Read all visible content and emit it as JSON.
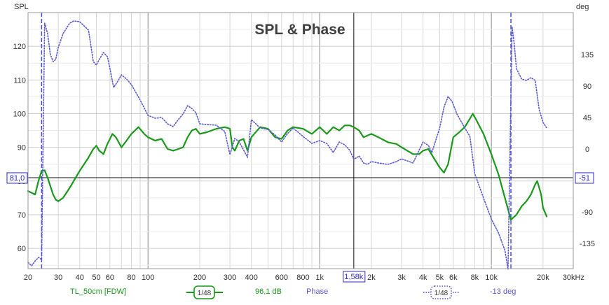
{
  "chart_data": {
    "type": "line",
    "title": "SPL & Phase",
    "xscale": "log",
    "xlim": [
      20,
      30000
    ],
    "ylabel_left": "SPL",
    "ylabel_right": "deg",
    "ylim_left": [
      54,
      130
    ],
    "ylim_right": [
      -171,
      195
    ],
    "x_ticks": [
      20,
      30,
      40,
      50,
      60,
      80,
      100,
      200,
      300,
      400,
      600,
      800,
      1000,
      2000,
      3000,
      4000,
      5000,
      6000,
      8000,
      10000,
      20000,
      30000
    ],
    "x_tick_labels": [
      "20",
      "30",
      "40",
      "50",
      "60",
      "80",
      "100",
      "200",
      "300",
      "400",
      "600",
      "800",
      "1k",
      "2k",
      "3k",
      "4k",
      "5k",
      "6k",
      "8k",
      "10k",
      "20k",
      "30kHz"
    ],
    "y_left_ticks": [
      60,
      70,
      80,
      90,
      100,
      110,
      120
    ],
    "y_left_tick_labels": [
      "60",
      "70",
      "80",
      "90",
      "100",
      "110",
      "120"
    ],
    "y_right_ticks": [
      -135,
      -90,
      -45,
      0,
      45,
      90,
      135
    ],
    "y_right_tick_labels": [
      "-135",
      "-90",
      "-45",
      "0",
      "45",
      "90",
      "135"
    ],
    "cursor": {
      "x": 1580,
      "x_label": "1,58k",
      "spl": 81.0,
      "spl_label": "81,0",
      "phase": -51,
      "phase_label": "-51"
    },
    "markers": [
      24,
      13000
    ],
    "series": [
      {
        "name": "TL_50cm [FDW]",
        "axis": "left",
        "color": "#1a9a1a",
        "style": "solid",
        "smoothing": "1/48",
        "value_label": "96,1 dB",
        "points": [
          [
            20,
            77
          ],
          [
            21,
            76.5
          ],
          [
            22,
            76
          ],
          [
            23,
            80
          ],
          [
            24,
            83
          ],
          [
            25,
            83.2
          ],
          [
            26,
            81
          ],
          [
            28,
            76
          ],
          [
            29,
            74.5
          ],
          [
            30,
            74
          ],
          [
            32,
            75
          ],
          [
            35,
            78
          ],
          [
            40,
            83
          ],
          [
            45,
            87
          ],
          [
            48,
            89.5
          ],
          [
            50,
            90.5
          ],
          [
            52,
            89
          ],
          [
            55,
            88
          ],
          [
            58,
            91
          ],
          [
            62,
            94
          ],
          [
            65,
            93
          ],
          [
            70,
            90
          ],
          [
            75,
            92
          ],
          [
            80,
            94
          ],
          [
            88,
            96
          ],
          [
            95,
            94
          ],
          [
            100,
            93
          ],
          [
            110,
            92
          ],
          [
            120,
            92.5
          ],
          [
            130,
            89.5
          ],
          [
            140,
            89
          ],
          [
            150,
            89.5
          ],
          [
            160,
            90
          ],
          [
            170,
            93
          ],
          [
            180,
            95
          ],
          [
            190,
            95.5
          ],
          [
            200,
            94
          ],
          [
            220,
            94.5
          ],
          [
            250,
            95.5
          ],
          [
            280,
            96
          ],
          [
            300,
            95.5
          ],
          [
            310,
            90
          ],
          [
            320,
            89
          ],
          [
            340,
            92
          ],
          [
            360,
            92.5
          ],
          [
            380,
            89
          ],
          [
            400,
            93
          ],
          [
            450,
            96
          ],
          [
            500,
            95.5
          ],
          [
            550,
            93
          ],
          [
            600,
            92.5
          ],
          [
            650,
            95
          ],
          [
            700,
            96
          ],
          [
            800,
            95.5
          ],
          [
            900,
            94
          ],
          [
            1000,
            96
          ],
          [
            1100,
            94
          ],
          [
            1200,
            96
          ],
          [
            1300,
            95
          ],
          [
            1400,
            96.5
          ],
          [
            1500,
            96.5
          ],
          [
            1580,
            96
          ],
          [
            1700,
            95
          ],
          [
            1800,
            93
          ],
          [
            2000,
            94
          ],
          [
            2200,
            93
          ],
          [
            2500,
            91.5
          ],
          [
            2800,
            91
          ],
          [
            3000,
            90
          ],
          [
            3500,
            88
          ],
          [
            3800,
            88
          ],
          [
            4000,
            89
          ],
          [
            4300,
            89.5
          ],
          [
            4600,
            87
          ],
          [
            5000,
            84
          ],
          [
            5300,
            82.5
          ],
          [
            5600,
            85
          ],
          [
            6000,
            93
          ],
          [
            6500,
            94.5
          ],
          [
            7000,
            96
          ],
          [
            7500,
            98.5
          ],
          [
            7800,
            100
          ],
          [
            8200,
            98
          ],
          [
            9000,
            94
          ],
          [
            10000,
            88
          ],
          [
            11000,
            82
          ],
          [
            12000,
            75
          ],
          [
            13000,
            68.5
          ],
          [
            14000,
            70
          ],
          [
            15000,
            72.5
          ],
          [
            16000,
            74
          ],
          [
            17000,
            76
          ],
          [
            18000,
            79
          ],
          [
            18500,
            80
          ],
          [
            19500,
            76
          ],
          [
            20000,
            72
          ],
          [
            21000,
            69.5
          ]
        ]
      },
      {
        "name": "Phase",
        "axis": "right",
        "color": "#5a5ad6",
        "style": "dotted",
        "smoothing": "1/48",
        "value_label": "-13 deg",
        "points": [
          [
            20,
            -162
          ],
          [
            21,
            -167
          ],
          [
            22,
            -160
          ],
          [
            23,
            -155
          ],
          [
            24,
            -158
          ],
          [
            25,
            180
          ],
          [
            26,
            165
          ],
          [
            27,
            135
          ],
          [
            28,
            125
          ],
          [
            29,
            128
          ],
          [
            30,
            145
          ],
          [
            32,
            165
          ],
          [
            35,
            180
          ],
          [
            37,
            183
          ],
          [
            40,
            182
          ],
          [
            45,
            170
          ],
          [
            48,
            125
          ],
          [
            50,
            120
          ],
          [
            52,
            128
          ],
          [
            55,
            138
          ],
          [
            58,
            132
          ],
          [
            60,
            115
          ],
          [
            63,
            88
          ],
          [
            66,
            95
          ],
          [
            70,
            106
          ],
          [
            75,
            100
          ],
          [
            80,
            92
          ],
          [
            90,
            70
          ],
          [
            100,
            48
          ],
          [
            110,
            44
          ],
          [
            120,
            45
          ],
          [
            130,
            36
          ],
          [
            140,
            32
          ],
          [
            150,
            42
          ],
          [
            160,
            50
          ],
          [
            170,
            62
          ],
          [
            180,
            58
          ],
          [
            190,
            52
          ],
          [
            200,
            36
          ],
          [
            220,
            35
          ],
          [
            250,
            34
          ],
          [
            280,
            25
          ],
          [
            300,
            -8
          ],
          [
            320,
            15
          ],
          [
            340,
            10
          ],
          [
            380,
            -12
          ],
          [
            400,
            42
          ],
          [
            450,
            30
          ],
          [
            500,
            28
          ],
          [
            550,
            20
          ],
          [
            600,
            10
          ],
          [
            650,
            22
          ],
          [
            700,
            30
          ],
          [
            800,
            18
          ],
          [
            900,
            8
          ],
          [
            1000,
            12
          ],
          [
            1100,
            8
          ],
          [
            1200,
            -5
          ],
          [
            1300,
            10
          ],
          [
            1400,
            6
          ],
          [
            1500,
            -2
          ],
          [
            1580,
            -15
          ],
          [
            1700,
            -10
          ],
          [
            1800,
            -20
          ],
          [
            1900,
            -22
          ],
          [
            2000,
            -18
          ],
          [
            2200,
            -20
          ],
          [
            2500,
            -22
          ],
          [
            2800,
            -18
          ],
          [
            3000,
            -14
          ],
          [
            3500,
            -20
          ],
          [
            4000,
            10
          ],
          [
            4300,
            5
          ],
          [
            4500,
            -5
          ],
          [
            5000,
            30
          ],
          [
            5300,
            60
          ],
          [
            5600,
            75
          ],
          [
            5900,
            68
          ],
          [
            6300,
            50
          ],
          [
            7000,
            30
          ],
          [
            7500,
            18
          ],
          [
            8000,
            -35
          ],
          [
            9000,
            -70
          ],
          [
            10000,
            -100
          ],
          [
            11000,
            -120
          ],
          [
            12000,
            -145
          ],
          [
            12500,
            -172
          ],
          [
            13200,
            175
          ],
          [
            13600,
            150
          ],
          [
            14000,
            115
          ],
          [
            15000,
            100
          ],
          [
            16000,
            98
          ],
          [
            17000,
            102
          ],
          [
            18000,
            98
          ],
          [
            19000,
            56
          ],
          [
            20000,
            38
          ],
          [
            21000,
            30
          ]
        ]
      }
    ]
  },
  "legend": {
    "series1_name": "TL_50cm [FDW]",
    "series1_smoothing": "1/48",
    "series1_value": "96,1 dB",
    "series2_name": "Phase",
    "series2_smoothing": "1/48",
    "series2_value": "-13 deg"
  }
}
